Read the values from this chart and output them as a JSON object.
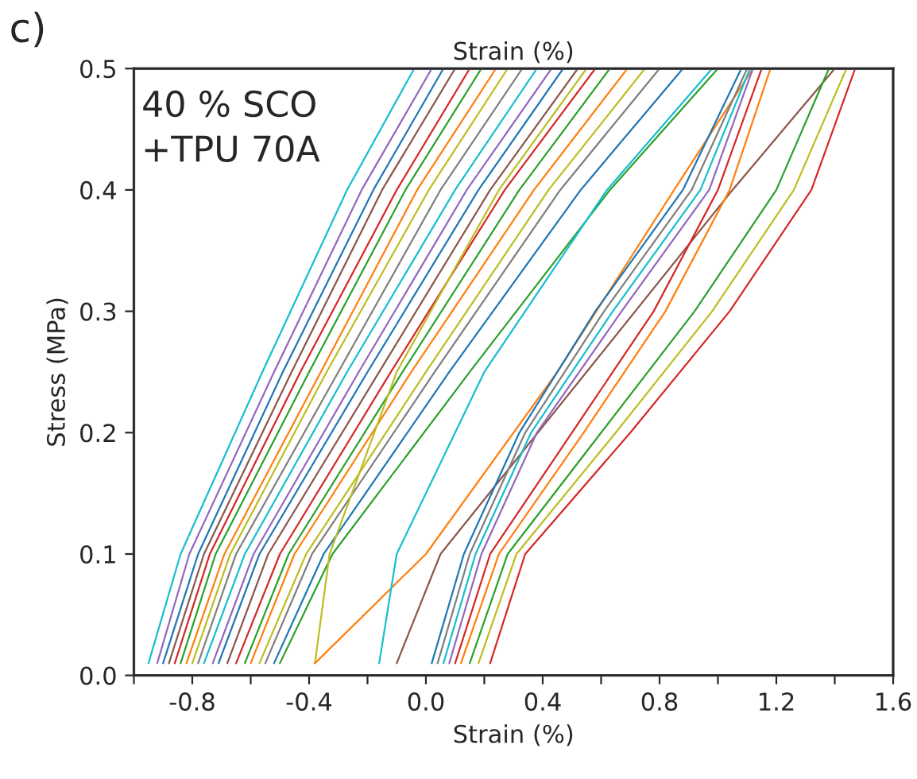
{
  "chart_data": {
    "type": "line",
    "xlabel": "Strain (%)",
    "x2label": "Strain (%)",
    "ylabel": "Stress (MPa)",
    "annotations": [
      "c)",
      "40 % SCO\n+TPU 70A"
    ],
    "xlim": [
      -1.0,
      1.6
    ],
    "ylim": [
      0,
      0.5
    ],
    "xticks": [
      {
        "value": -1.0,
        "label": null
      },
      -0.8,
      {
        "value": -0.6,
        "label": null
      },
      -0.4,
      {
        "value": -0.2,
        "label": null
      },
      {
        "value": 0,
        "label": "0.0"
      },
      {
        "value": 0.2,
        "label": null
      },
      0.4,
      {
        "value": 0.6,
        "label": null
      },
      0.8,
      {
        "value": 1.0,
        "label": null
      },
      1.2,
      {
        "value": 1.4,
        "label": null
      },
      1.6
    ],
    "yticks": [
      {
        "value": 0,
        "label": "0.0"
      },
      0.1,
      0.2,
      0.3,
      0.4,
      0.5
    ],
    "grid": false,
    "legend": false,
    "marker": "none",
    "line_style": "solid",
    "series": [
      {
        "color": "#17becf",
        "x": [
          -0.95,
          -0.84,
          -0.56,
          -0.27,
          -0.04
        ],
        "values": [
          0.01,
          0.1,
          0.25,
          0.4,
          0.5
        ]
      },
      {
        "color": "#9467bd",
        "x": [
          -0.92,
          -0.81,
          -0.52,
          -0.22,
          0.02
        ],
        "values": [
          0.01,
          0.1,
          0.25,
          0.4,
          0.5
        ]
      },
      {
        "color": "#1f77b4",
        "x": [
          -0.9,
          -0.78,
          -0.49,
          -0.18,
          0.06
        ],
        "values": [
          0.01,
          0.1,
          0.25,
          0.4,
          0.5
        ]
      },
      {
        "color": "#8c564b",
        "x": [
          -0.88,
          -0.76,
          -0.46,
          -0.15,
          0.1
        ],
        "values": [
          0.01,
          0.1,
          0.25,
          0.4,
          0.5
        ]
      },
      {
        "color": "#d62728",
        "x": [
          -0.86,
          -0.74,
          -0.43,
          -0.1,
          0.15
        ],
        "values": [
          0.01,
          0.1,
          0.25,
          0.4,
          0.5
        ]
      },
      {
        "color": "#2ca02c",
        "x": [
          -0.84,
          -0.72,
          -0.4,
          -0.07,
          0.19
        ],
        "values": [
          0.01,
          0.1,
          0.25,
          0.4,
          0.5
        ]
      },
      {
        "color": "#ff7f0e",
        "x": [
          -0.82,
          -0.69,
          -0.36,
          -0.03,
          0.24
        ],
        "values": [
          0.01,
          0.1,
          0.25,
          0.4,
          0.5
        ]
      },
      {
        "color": "#bcbd22",
        "x": [
          -0.8,
          -0.67,
          -0.34,
          0.01,
          0.28
        ],
        "values": [
          0.01,
          0.1,
          0.25,
          0.4,
          0.5
        ]
      },
      {
        "color": "#7f7f7f",
        "x": [
          -0.78,
          -0.65,
          -0.3,
          0.05,
          0.33
        ],
        "values": [
          0.01,
          0.1,
          0.25,
          0.4,
          0.5
        ]
      },
      {
        "color": "#17becf",
        "x": [
          -0.76,
          -0.62,
          -0.27,
          0.1,
          0.38
        ],
        "values": [
          0.01,
          0.1,
          0.25,
          0.4,
          0.5
        ]
      },
      {
        "color": "#9467bd",
        "x": [
          -0.73,
          -0.59,
          -0.23,
          0.14,
          0.43
        ],
        "values": [
          0.01,
          0.1,
          0.25,
          0.4,
          0.5
        ]
      },
      {
        "color": "#1f77b4",
        "x": [
          -0.71,
          -0.57,
          -0.2,
          0.18,
          0.47
        ],
        "values": [
          0.01,
          0.1,
          0.25,
          0.4,
          0.5
        ]
      },
      {
        "color": "#8c564b",
        "x": [
          -0.68,
          -0.54,
          -0.16,
          0.22,
          0.52
        ],
        "values": [
          0.01,
          0.1,
          0.25,
          0.4,
          0.5
        ]
      },
      {
        "color": "#d62728",
        "x": [
          -0.65,
          -0.5,
          -0.12,
          0.27,
          0.58
        ],
        "values": [
          0.01,
          0.1,
          0.25,
          0.4,
          0.5
        ]
      },
      {
        "color": "#2ca02c",
        "x": [
          -0.62,
          -0.47,
          -0.08,
          0.32,
          0.63
        ],
        "values": [
          0.01,
          0.1,
          0.25,
          0.4,
          0.5
        ]
      },
      {
        "color": "#ff7f0e",
        "x": [
          -0.6,
          -0.45,
          -0.05,
          0.37,
          0.69
        ],
        "values": [
          0.01,
          0.1,
          0.25,
          0.4,
          0.5
        ]
      },
      {
        "color": "#bcbd22",
        "x": [
          -0.57,
          -0.41,
          0.0,
          0.42,
          0.75
        ],
        "values": [
          0.01,
          0.1,
          0.25,
          0.4,
          0.5
        ]
      },
      {
        "color": "#7f7f7f",
        "x": [
          -0.55,
          -0.39,
          0.03,
          0.46,
          0.8
        ],
        "values": [
          0.01,
          0.1,
          0.25,
          0.4,
          0.5
        ]
      },
      {
        "color": "#1f77b4",
        "x": [
          -0.52,
          -0.35,
          0.08,
          0.53,
          0.88
        ],
        "values": [
          0.01,
          0.1,
          0.25,
          0.4,
          0.5
        ]
      },
      {
        "color": "#2ca02c",
        "x": [
          -0.5,
          -0.32,
          0.15,
          0.63,
          1.0
        ],
        "values": [
          0.01,
          0.1,
          0.25,
          0.4,
          0.5
        ]
      },
      {
        "color": "#bcbd22",
        "x": [
          -0.38,
          -0.33,
          -0.1,
          0.25,
          0.55
        ],
        "values": [
          0.01,
          0.1,
          0.25,
          0.4,
          0.5
        ]
      },
      {
        "color": "#ff7f0e",
        "x": [
          -0.38,
          0.0,
          0.45,
          0.85,
          1.12
        ],
        "values": [
          0.01,
          0.1,
          0.25,
          0.4,
          0.5
        ]
      },
      {
        "color": "#17becf",
        "x": [
          -0.16,
          -0.1,
          0.2,
          0.62,
          0.98
        ],
        "values": [
          0.01,
          0.1,
          0.25,
          0.4,
          0.5
        ]
      },
      {
        "color": "#8c564b",
        "x": [
          -0.1,
          0.05,
          0.55,
          1.05,
          1.4
        ],
        "values": [
          0.01,
          0.1,
          0.25,
          0.4,
          0.5
        ]
      },
      {
        "color": "#1f77b4",
        "x": [
          0.02,
          0.13,
          0.32,
          0.58,
          0.88,
          1.08
        ],
        "values": [
          0.01,
          0.1,
          0.2,
          0.3,
          0.4,
          0.5
        ]
      },
      {
        "color": "#7f7f7f",
        "x": [
          0.04,
          0.15,
          0.34,
          0.61,
          0.91,
          1.1
        ],
        "values": [
          0.01,
          0.1,
          0.2,
          0.3,
          0.4,
          0.5
        ]
      },
      {
        "color": "#17becf",
        "x": [
          0.06,
          0.17,
          0.36,
          0.64,
          0.94,
          1.11
        ],
        "values": [
          0.01,
          0.1,
          0.2,
          0.3,
          0.4,
          0.5
        ]
      },
      {
        "color": "#9467bd",
        "x": [
          0.08,
          0.19,
          0.38,
          0.67,
          0.97,
          1.12
        ],
        "values": [
          0.01,
          0.1,
          0.2,
          0.3,
          0.4,
          0.5
        ]
      },
      {
        "color": "#d62728",
        "x": [
          0.1,
          0.22,
          0.5,
          0.78,
          1.0,
          1.15
        ],
        "values": [
          0.01,
          0.1,
          0.2,
          0.3,
          0.4,
          0.5
        ]
      },
      {
        "color": "#ff7f0e",
        "x": [
          0.12,
          0.25,
          0.54,
          0.82,
          1.04,
          1.18
        ],
        "values": [
          0.01,
          0.1,
          0.2,
          0.3,
          0.4,
          0.5
        ]
      },
      {
        "color": "#2ca02c",
        "x": [
          0.15,
          0.28,
          0.6,
          0.92,
          1.2,
          1.38
        ],
        "values": [
          0.01,
          0.1,
          0.2,
          0.3,
          0.4,
          0.5
        ]
      },
      {
        "color": "#bcbd22",
        "x": [
          0.18,
          0.31,
          0.65,
          0.98,
          1.26,
          1.44
        ],
        "values": [
          0.01,
          0.1,
          0.2,
          0.3,
          0.4,
          0.5
        ]
      },
      {
        "color": "#d62728",
        "x": [
          0.22,
          0.34,
          0.7,
          1.04,
          1.32,
          1.47
        ],
        "values": [
          0.01,
          0.1,
          0.2,
          0.3,
          0.4,
          0.5
        ]
      }
    ]
  }
}
